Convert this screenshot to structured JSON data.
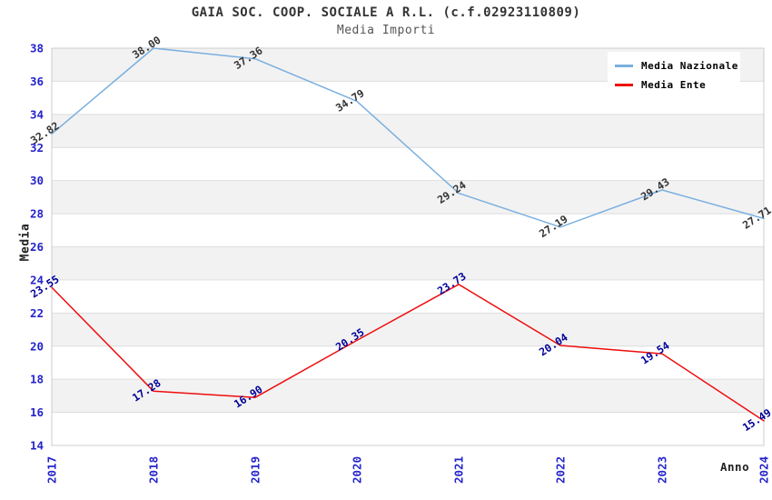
{
  "title": "GAIA SOC. COOP. SOCIALE A R.L. (c.f.02923110809)",
  "subtitle": "Media Importi",
  "axes": {
    "x_title": "Anno",
    "y_title": "Media",
    "tick_label_color": "#2424CB"
  },
  "legend": {
    "position": "top-right",
    "items": [
      {
        "label": "Media Nazionale",
        "color": "#79AFDF"
      },
      {
        "label": "Media Ente",
        "color": "#EE0D0D"
      }
    ]
  },
  "chart_data": {
    "type": "line",
    "title": "GAIA SOC. COOP. SOCIALE A R.L. (c.f.02923110809)",
    "subtitle": "Media Importi",
    "xlabel": "Anno",
    "ylabel": "Media",
    "categories": [
      "2017",
      "2018",
      "2019",
      "2020",
      "2021",
      "2022",
      "2023",
      "2024"
    ],
    "series": [
      {
        "name": "Media Nazionale",
        "color": "#79AFDF",
        "label_color": "#333333",
        "values": [
          32.82,
          38.0,
          37.36,
          34.79,
          29.24,
          27.19,
          29.43,
          27.71
        ]
      },
      {
        "name": "Media Ente",
        "color": "#EE0D0D",
        "label_color": "#000099",
        "values": [
          23.55,
          17.28,
          16.9,
          20.35,
          23.73,
          20.04,
          19.54,
          15.49
        ]
      }
    ],
    "ylim": [
      14,
      38
    ],
    "ytick_step": 2,
    "value_decimals": 2,
    "grid": "alternating-horizontal-bands",
    "band_colors": [
      "#F2F2F2",
      "#FFFFFF"
    ],
    "grid_line_color": "#DEDEDE",
    "plot_border_color": "#CCCCCC",
    "legend_position": "top-right"
  }
}
